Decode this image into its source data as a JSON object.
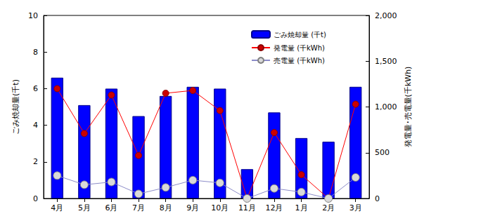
{
  "chart_data": {
    "type": "bar",
    "categories": [
      "4月",
      "5月",
      "6月",
      "7月",
      "8月",
      "9月",
      "10月",
      "11月",
      "12月",
      "1月",
      "2月",
      "3月"
    ],
    "y_label": "ごみ焼却量(千t)",
    "y2_label": "発電量･売電量(千kWh)",
    "ylim": [
      0,
      10
    ],
    "yticks": [
      0,
      2,
      4,
      6,
      8,
      10
    ],
    "y2lim": [
      0,
      2000
    ],
    "y2ticks": [
      0,
      500,
      {
        "value": 1000,
        "label": "1,000"
      },
      {
        "value": 1500,
        "label": "1,500"
      },
      {
        "value": 2000,
        "label": "2,000"
      }
    ],
    "grid": false,
    "legend": "upper right",
    "series": [
      {
        "name": "ごみ焼却量 (千t)",
        "type": "bar",
        "color": "#0000ff",
        "values": [
          6.6,
          5.1,
          6.0,
          4.5,
          5.6,
          6.1,
          6.0,
          1.6,
          4.7,
          3.3,
          3.1,
          6.1
        ]
      },
      {
        "name": "発電量 (千kWh)",
        "type": "line",
        "axis": "y2",
        "color": "#ff0000",
        "marker": "circle",
        "line_style": "solid",
        "values": [
          1200,
          710,
          1130,
          470,
          1150,
          1180,
          960,
          0,
          720,
          260,
          0,
          1030
        ]
      },
      {
        "name": "売電量 (千kWh)",
        "type": "line",
        "axis": "y2",
        "color": "#8c8cc8",
        "marker": "circle",
        "line_style": "solid",
        "values": [
          250,
          150,
          180,
          50,
          120,
          200,
          170,
          0,
          110,
          70,
          0,
          230
        ]
      }
    ]
  }
}
